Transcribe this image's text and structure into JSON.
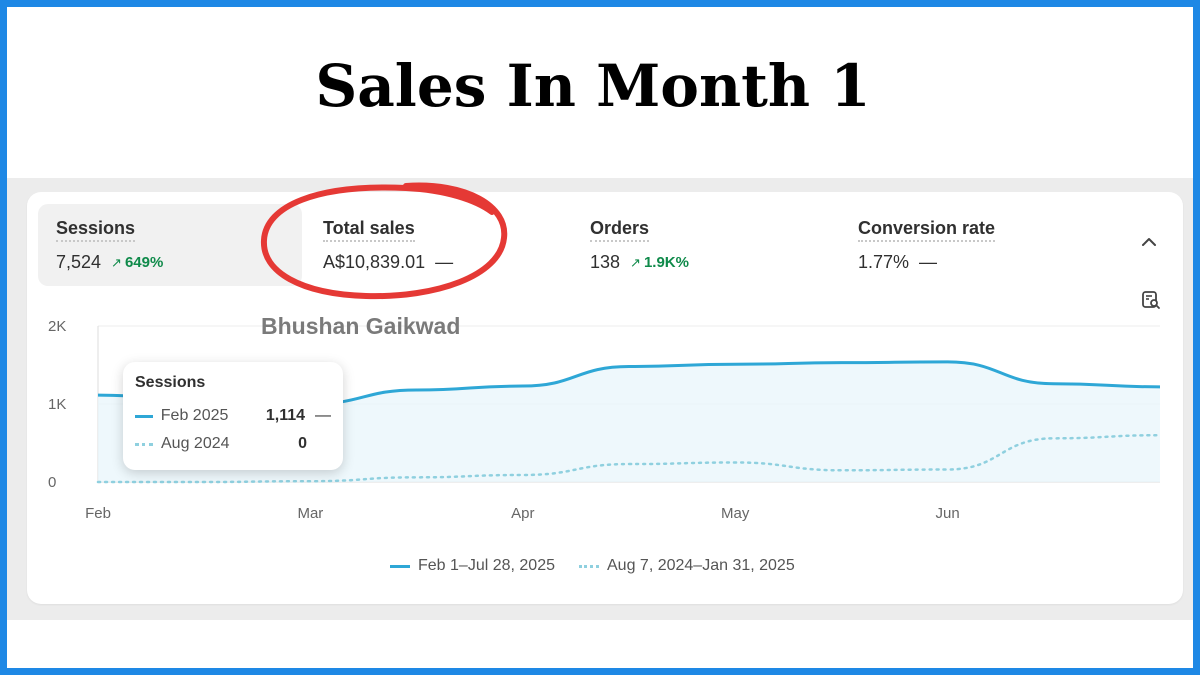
{
  "page_title": "Sales In Month 1",
  "watermark": "Bhushan Gaikwad",
  "metrics": [
    {
      "label": "Sessions",
      "value": "7,524",
      "change": "649%",
      "trend": "up",
      "active": true
    },
    {
      "label": "Total sales",
      "value": "A$10,839.01",
      "change": "—",
      "trend": "none",
      "active": false
    },
    {
      "label": "Orders",
      "value": "138",
      "change": "1.9K%",
      "trend": "up",
      "active": false
    },
    {
      "label": "Conversion rate",
      "value": "1.77%",
      "change": "—",
      "trend": "none",
      "active": false
    }
  ],
  "tooltip": {
    "title": "Sessions",
    "rows": [
      {
        "period": "Feb 2025",
        "value": "1,114",
        "suffix": "—"
      },
      {
        "period": "Aug 2024",
        "value": "0",
        "suffix": ""
      }
    ]
  },
  "legend": [
    {
      "label": "Feb 1–Jul 28, 2025"
    },
    {
      "label": "Aug 7, 2024–Jan 31, 2025"
    }
  ],
  "colors": {
    "accent": "#2ea7d6",
    "comparison": "#8fd0df",
    "positive": "#0f8a4a",
    "highlight_circle": "#e53935",
    "frame": "#1e88e5"
  },
  "icons": [
    "arrow-up-icon",
    "chevron-up-icon",
    "report-search-icon"
  ],
  "chart_data": {
    "type": "line",
    "x_ticks": [
      "Feb",
      "Mar",
      "Apr",
      "May",
      "Jun"
    ],
    "y_ticks": [
      "0",
      "1K",
      "2K"
    ],
    "ylim": [
      0,
      2000
    ],
    "grid": true,
    "legend_position": "bottom",
    "x": [
      0,
      0.5,
      1,
      1.5,
      2,
      2.5,
      3,
      3.5,
      4,
      4.5,
      5
    ],
    "series": [
      {
        "name": "Feb 1–Jul 28, 2025",
        "style": "solid",
        "values": [
          1114,
          1050,
          1000,
          1180,
          1230,
          1480,
          1510,
          1530,
          1540,
          1260,
          1220
        ]
      },
      {
        "name": "Aug 7, 2024–Jan 31, 2025",
        "style": "dotted",
        "values": [
          0,
          0,
          10,
          60,
          90,
          230,
          250,
          150,
          160,
          560,
          600
        ]
      }
    ]
  }
}
